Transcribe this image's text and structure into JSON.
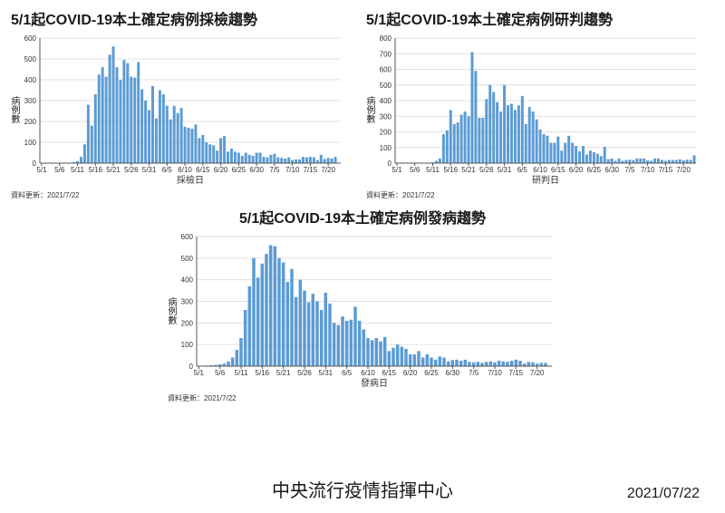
{
  "colors": {
    "bar": "#5b9bd5",
    "axis": "#555555",
    "grid": "#e0e0e0",
    "text": "#1a1a1a",
    "background": "#ffffff"
  },
  "x_ticks": [
    "5/1",
    "5/6",
    "5/11",
    "5/16",
    "5/21",
    "5/26",
    "5/31",
    "6/5",
    "6/10",
    "6/15",
    "6/20",
    "6/25",
    "6/30",
    "7/5",
    "7/10",
    "7/15",
    "7/20",
    "7/25"
  ],
  "footer": {
    "center": "中央流行疫情指揮中心",
    "right": "2021/07/22"
  },
  "source_label": "資料更新：2021/7/22",
  "ylabel": "病例數",
  "chart1": {
    "title": "5/1起COVID-19本土確定病例採檢趨勢",
    "xaxis_title": "採檢日",
    "ymax": 600,
    "ytick_step": 100,
    "values": [
      0,
      0,
      0,
      0,
      0,
      0,
      0,
      0,
      0,
      5,
      10,
      30,
      90,
      280,
      180,
      330,
      425,
      460,
      415,
      520,
      560,
      460,
      400,
      495,
      480,
      415,
      410,
      485,
      355,
      300,
      255,
      370,
      215,
      350,
      330,
      275,
      210,
      275,
      240,
      265,
      175,
      170,
      165,
      185,
      120,
      135,
      100,
      90,
      85,
      60,
      120,
      130,
      55,
      70,
      55,
      50,
      35,
      50,
      40,
      35,
      50,
      50,
      30,
      28,
      40,
      45,
      28,
      25,
      22,
      28,
      15,
      18,
      18,
      30,
      28,
      30,
      28,
      15,
      40,
      20,
      25,
      22,
      30,
      0
    ]
  },
  "chart2": {
    "title": "5/1起COVID-19本土確定病例研判趨勢",
    "xaxis_title": "研判日",
    "ymax": 800,
    "ytick_step": 100,
    "values": [
      0,
      0,
      0,
      0,
      0,
      0,
      0,
      0,
      0,
      0,
      5,
      15,
      30,
      185,
      210,
      340,
      250,
      260,
      310,
      330,
      300,
      710,
      590,
      290,
      290,
      410,
      500,
      455,
      390,
      330,
      500,
      370,
      380,
      340,
      370,
      430,
      250,
      360,
      330,
      280,
      215,
      185,
      175,
      130,
      130,
      170,
      80,
      130,
      175,
      130,
      110,
      75,
      110,
      55,
      80,
      70,
      60,
      45,
      105,
      25,
      30,
      15,
      30,
      15,
      20,
      22,
      20,
      30,
      30,
      30,
      18,
      15,
      30,
      30,
      20,
      15,
      20,
      20,
      20,
      25,
      18,
      22,
      20,
      50
    ]
  },
  "chart3": {
    "title": "5/1起COVID-19本土確定病例發病趨勢",
    "xaxis_title": "發病日",
    "ymax": 600,
    "ytick_step": 100,
    "values": [
      0,
      2,
      3,
      4,
      6,
      8,
      12,
      22,
      40,
      75,
      130,
      260,
      370,
      500,
      410,
      475,
      520,
      560,
      555,
      500,
      480,
      390,
      450,
      320,
      400,
      350,
      295,
      335,
      300,
      260,
      340,
      290,
      200,
      190,
      230,
      210,
      215,
      275,
      210,
      170,
      130,
      120,
      130,
      115,
      135,
      70,
      85,
      100,
      90,
      80,
      55,
      55,
      70,
      40,
      55,
      40,
      30,
      45,
      40,
      22,
      28,
      30,
      25,
      30,
      20,
      18,
      20,
      15,
      20,
      22,
      18,
      25,
      22,
      20,
      25,
      30,
      25,
      12,
      20,
      18,
      12,
      15,
      15,
      0
    ]
  }
}
